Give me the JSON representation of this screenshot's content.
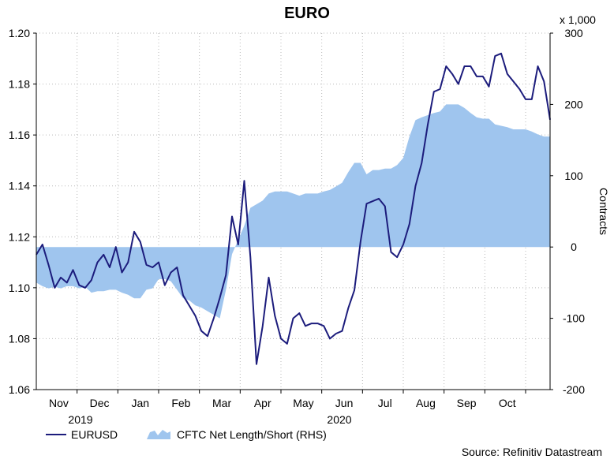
{
  "chart_data": {
    "type": "line+area",
    "title": "EURO",
    "x_month_labels": [
      "Nov",
      "Dec",
      "Jan",
      "Feb",
      "Mar",
      "Apr",
      "May",
      "Jun",
      "Jul",
      "Aug",
      "Sep",
      "Oct"
    ],
    "x_year_labels": [
      "2019",
      "2020"
    ],
    "y_left": {
      "ticks": [
        "1.20",
        "1.18",
        "1.16",
        "1.14",
        "1.12",
        "1.10",
        "1.08",
        "1.06"
      ],
      "ylim": [
        1.06,
        1.2
      ]
    },
    "y_right": {
      "ticks": [
        "300",
        "200",
        "100",
        "0",
        "-100",
        "-200"
      ],
      "ylim": [
        -200,
        300
      ],
      "multiplier_label": "x 1,000",
      "label": "Contracts"
    },
    "legend": {
      "eurusd": "EURUSD",
      "cftc": "CFTC Net Length/Short (RHS)"
    },
    "source": "Source: Refinitiv Datastream",
    "colors": {
      "eurusd": "#1c1c7c",
      "cftc": "#9fc5ee"
    },
    "series": [
      {
        "name": "EURUSD",
        "axis": "left",
        "time": [
          0,
          0.15,
          0.3,
          0.45,
          0.6,
          0.75,
          0.9,
          1.05,
          1.2,
          1.35,
          1.5,
          1.65,
          1.8,
          1.95,
          2.1,
          2.25,
          2.4,
          2.55,
          2.7,
          2.85,
          3.0,
          3.15,
          3.3,
          3.45,
          3.6,
          3.75,
          3.9,
          4.05,
          4.2,
          4.35,
          4.5,
          4.65,
          4.8,
          4.95,
          5.1,
          5.25,
          5.4,
          5.55,
          5.7,
          5.85,
          6.0,
          6.15,
          6.3,
          6.45,
          6.6,
          6.75,
          6.9,
          7.05,
          7.2,
          7.35,
          7.5,
          7.65,
          7.8,
          7.95,
          8.1,
          8.25,
          8.4,
          8.55,
          8.7,
          8.85,
          9.0,
          9.15,
          9.3,
          9.45,
          9.6,
          9.75,
          9.9,
          10.05,
          10.2,
          10.35,
          10.5,
          10.65,
          10.8,
          10.95,
          11.1,
          11.25,
          11.4,
          11.55,
          11.7,
          11.85,
          12.0,
          12.15,
          12.3,
          12.45,
          12.6
        ],
        "values": [
          1.113,
          1.117,
          1.109,
          1.1,
          1.104,
          1.102,
          1.107,
          1.101,
          1.1,
          1.103,
          1.11,
          1.113,
          1.108,
          1.116,
          1.106,
          1.11,
          1.122,
          1.118,
          1.109,
          1.108,
          1.11,
          1.101,
          1.106,
          1.108,
          1.097,
          1.093,
          1.089,
          1.083,
          1.081,
          1.088,
          1.096,
          1.105,
          1.128,
          1.117,
          1.142,
          1.112,
          1.07,
          1.085,
          1.104,
          1.089,
          1.08,
          1.078,
          1.088,
          1.09,
          1.085,
          1.086,
          1.086,
          1.085,
          1.08,
          1.082,
          1.083,
          1.092,
          1.099,
          1.118,
          1.133,
          1.134,
          1.135,
          1.132,
          1.114,
          1.112,
          1.117,
          1.125,
          1.14,
          1.149,
          1.164,
          1.177,
          1.178,
          1.187,
          1.184,
          1.18,
          1.187,
          1.187,
          1.183,
          1.183,
          1.179,
          1.191,
          1.192,
          1.184,
          1.181,
          1.178,
          1.174,
          1.174,
          1.187,
          1.181,
          1.166
        ]
      },
      {
        "name": "CFTC Net Length/Short (RHS)",
        "axis": "right",
        "time": [
          0,
          0.15,
          0.3,
          0.45,
          0.6,
          0.75,
          0.9,
          1.05,
          1.2,
          1.35,
          1.5,
          1.65,
          1.8,
          1.95,
          2.1,
          2.25,
          2.4,
          2.55,
          2.7,
          2.85,
          3.0,
          3.15,
          3.3,
          3.45,
          3.6,
          3.75,
          3.9,
          4.05,
          4.2,
          4.35,
          4.5,
          4.65,
          4.8,
          4.95,
          5.1,
          5.25,
          5.4,
          5.55,
          5.7,
          5.85,
          6.0,
          6.15,
          6.3,
          6.45,
          6.6,
          6.75,
          6.9,
          7.05,
          7.2,
          7.35,
          7.5,
          7.65,
          7.8,
          7.95,
          8.1,
          8.25,
          8.4,
          8.55,
          8.7,
          8.85,
          9.0,
          9.15,
          9.3,
          9.45,
          9.6,
          9.75,
          9.9,
          10.05,
          10.2,
          10.35,
          10.5,
          10.65,
          10.8,
          10.95,
          11.1,
          11.25,
          11.4,
          11.55,
          11.7,
          11.85,
          12.0,
          12.15,
          12.3,
          12.45,
          12.6
        ],
        "values": [
          -50,
          -55,
          -58,
          -56,
          -58,
          -55,
          -55,
          -58,
          -56,
          -64,
          -62,
          -62,
          -60,
          -60,
          -64,
          -67,
          -72,
          -72,
          -60,
          -58,
          -45,
          -45,
          -48,
          -60,
          -72,
          -75,
          -82,
          -85,
          -90,
          -95,
          -100,
          -60,
          -10,
          10,
          30,
          55,
          60,
          65,
          75,
          78,
          78,
          78,
          75,
          72,
          75,
          75,
          75,
          78,
          80,
          85,
          90,
          105,
          118,
          118,
          102,
          108,
          108,
          110,
          110,
          115,
          125,
          155,
          178,
          182,
          185,
          188,
          190,
          200,
          200,
          200,
          195,
          188,
          182,
          180,
          180,
          172,
          170,
          168,
          165,
          165,
          165,
          162,
          158,
          155,
          155
        ]
      }
    ]
  }
}
